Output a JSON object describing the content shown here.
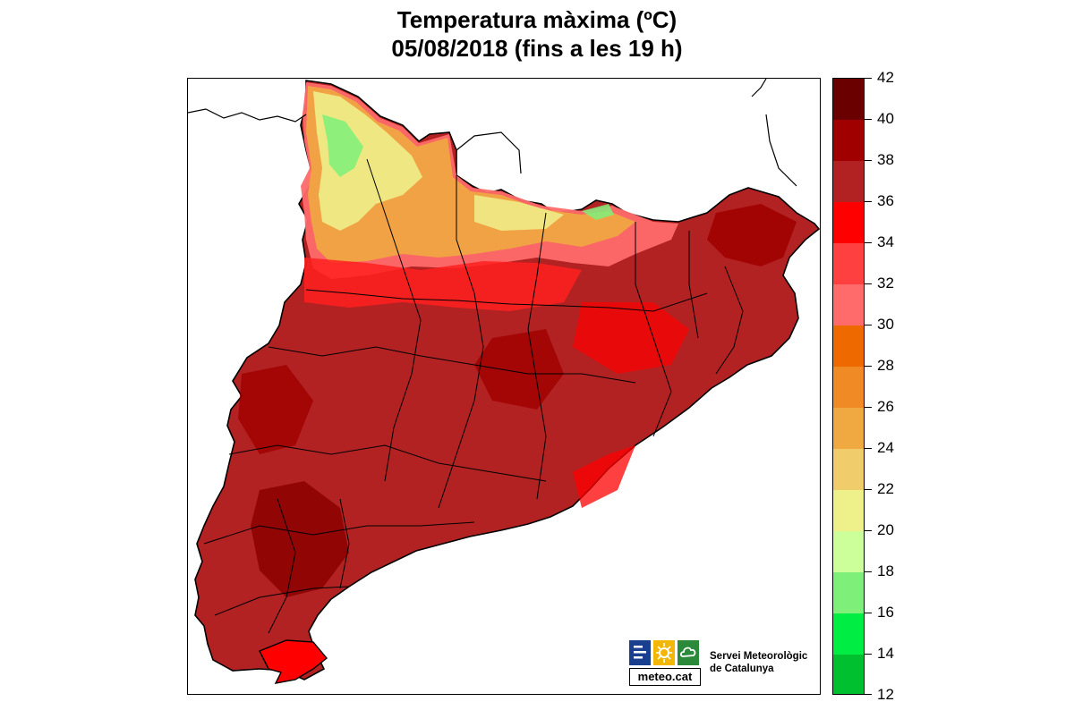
{
  "title": {
    "line1": "Temperatura màxima (ºC)",
    "line2": "05/08/2018 (fins a les 19 h)"
  },
  "legend": {
    "ticks": [
      "42",
      "40",
      "38",
      "36",
      "34",
      "32",
      "30",
      "28",
      "26",
      "24",
      "22",
      "20",
      "18",
      "16",
      "14",
      "12"
    ],
    "bands_top_to_bottom": [
      {
        "range": "40-42",
        "color": "#6b0000"
      },
      {
        "range": "38-40",
        "color": "#a00000"
      },
      {
        "range": "36-38",
        "color": "#b22222"
      },
      {
        "range": "34-36",
        "color": "#ff0000"
      },
      {
        "range": "32-34",
        "color": "#ff4040"
      },
      {
        "range": "30-32",
        "color": "#ff6a6a"
      },
      {
        "range": "28-30",
        "color": "#ee6a00"
      },
      {
        "range": "26-28",
        "color": "#f08a24"
      },
      {
        "range": "24-26",
        "color": "#f0a840"
      },
      {
        "range": "22-24",
        "color": "#f0cc6a"
      },
      {
        "range": "20-22",
        "color": "#eef08a"
      },
      {
        "range": "18-20",
        "color": "#ccff99"
      },
      {
        "range": "16-18",
        "color": "#7ef07a"
      },
      {
        "range": "14-16",
        "color": "#00ee44"
      },
      {
        "range": "12-14",
        "color": "#00c030"
      }
    ]
  },
  "map": {
    "region": "Catalunya",
    "dominant_range": "36-40"
  },
  "logo": {
    "text": "meteo.cat",
    "org_line1": "Servei Meteorològic",
    "org_line2": "de Catalunya",
    "colors": {
      "blue": "#1a3f8f",
      "yellow": "#f2b705",
      "green": "#2a8a3a"
    }
  }
}
